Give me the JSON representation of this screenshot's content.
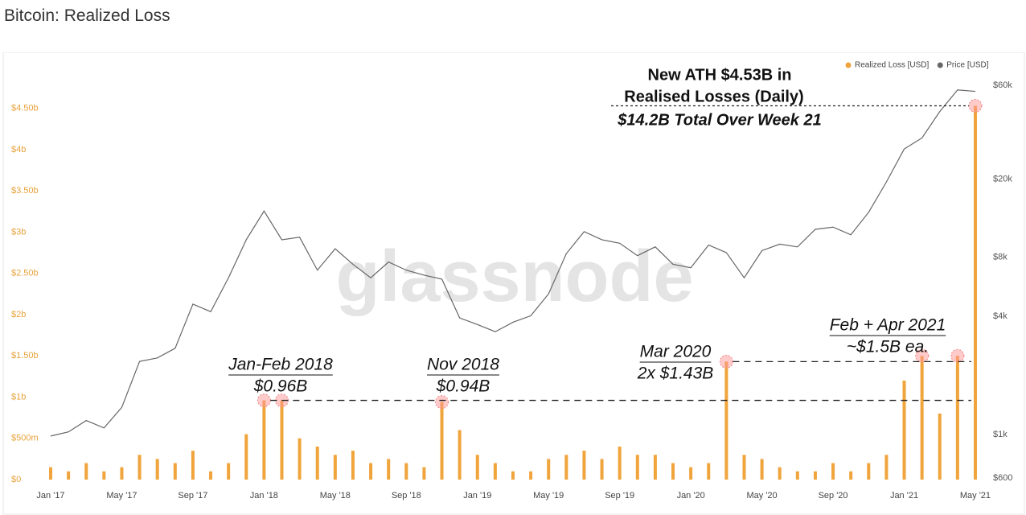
{
  "chart_data": {
    "type": "bar-line",
    "title": "Bitcoin: Realized Loss",
    "watermark": "glassnode",
    "x": [
      "2017-01",
      "2017-02",
      "2017-03",
      "2017-04",
      "2017-05",
      "2017-06",
      "2017-07",
      "2017-08",
      "2017-09",
      "2017-10",
      "2017-11",
      "2017-12",
      "2018-01",
      "2018-02",
      "2018-03",
      "2018-04",
      "2018-05",
      "2018-06",
      "2018-07",
      "2018-08",
      "2018-09",
      "2018-10",
      "2018-11",
      "2018-12",
      "2019-01",
      "2019-02",
      "2019-03",
      "2019-04",
      "2019-05",
      "2019-06",
      "2019-07",
      "2019-08",
      "2019-09",
      "2019-10",
      "2019-11",
      "2019-12",
      "2020-01",
      "2020-02",
      "2020-03",
      "2020-04",
      "2020-05",
      "2020-06",
      "2020-07",
      "2020-08",
      "2020-09",
      "2020-10",
      "2020-11",
      "2020-12",
      "2021-01",
      "2021-02",
      "2021-03",
      "2021-04",
      "2021-05"
    ],
    "series": [
      {
        "name": "Realized Loss [USD]",
        "color": "#f0a43c",
        "values": [
          0.15,
          0.1,
          0.2,
          0.1,
          0.15,
          0.3,
          0.25,
          0.2,
          0.35,
          0.1,
          0.2,
          0.55,
          0.96,
          0.96,
          0.5,
          0.4,
          0.3,
          0.35,
          0.2,
          0.25,
          0.2,
          0.15,
          0.94,
          0.6,
          0.3,
          0.2,
          0.1,
          0.1,
          0.25,
          0.3,
          0.35,
          0.25,
          0.4,
          0.3,
          0.3,
          0.2,
          0.15,
          0.2,
          1.43,
          0.3,
          0.25,
          0.15,
          0.1,
          0.1,
          0.2,
          0.1,
          0.2,
          0.3,
          1.2,
          1.5,
          0.8,
          1.5,
          4.53
        ]
      },
      {
        "name": "Price [USD]",
        "color": "#666666",
        "axis": "y2",
        "values": [
          1000,
          1050,
          1200,
          1100,
          1400,
          2400,
          2500,
          2800,
          4700,
          4300,
          6400,
          10000,
          14000,
          10000,
          10300,
          7000,
          9000,
          7500,
          6400,
          7700,
          7000,
          6600,
          6300,
          4000,
          3700,
          3400,
          3800,
          4100,
          5300,
          8500,
          11000,
          10000,
          9600,
          8300,
          9200,
          7500,
          7200,
          9400,
          8600,
          6400,
          8800,
          9500,
          9200,
          11300,
          11600,
          10600,
          13800,
          19700,
          29000,
          33000,
          45000,
          58000,
          57000
        ]
      }
    ],
    "ylim": [
      0,
      5.13
    ],
    "yticks": [
      {
        "value": 0,
        "label": "$0"
      },
      {
        "value": 0.5,
        "label": "$500m"
      },
      {
        "value": 1,
        "label": "$1b"
      },
      {
        "value": 1.5,
        "label": "$1.50b"
      },
      {
        "value": 2,
        "label": "$2b"
      },
      {
        "value": 2.5,
        "label": "$2.50b"
      },
      {
        "value": 3,
        "label": "$3b"
      },
      {
        "value": 3.5,
        "label": "$3.50b"
      },
      {
        "value": 4,
        "label": "$4b"
      },
      {
        "value": 4.5,
        "label": "$4.50b"
      }
    ],
    "y2lim": [
      600,
      86000
    ],
    "y2log": true,
    "y2ticks": [
      {
        "value": 600,
        "label": "$600"
      },
      {
        "value": 1000,
        "label": "$1k"
      },
      {
        "value": 4000,
        "label": "$4k"
      },
      {
        "value": 8000,
        "label": "$8k"
      },
      {
        "value": 20000,
        "label": "$20k"
      },
      {
        "value": 60000,
        "label": "$60k"
      }
    ],
    "xticks": [
      {
        "value": "2017-01",
        "label": "Jan '17"
      },
      {
        "value": "2017-05",
        "label": "May '17"
      },
      {
        "value": "2017-09",
        "label": "Sep '17"
      },
      {
        "value": "2018-01",
        "label": "Jan '18"
      },
      {
        "value": "2018-05",
        "label": "May '18"
      },
      {
        "value": "2018-09",
        "label": "Sep '18"
      },
      {
        "value": "2019-01",
        "label": "Jan '19"
      },
      {
        "value": "2019-05",
        "label": "May '19"
      },
      {
        "value": "2019-09",
        "label": "Sep '19"
      },
      {
        "value": "2020-01",
        "label": "Jan '20"
      },
      {
        "value": "2020-05",
        "label": "May '20"
      },
      {
        "value": "2020-09",
        "label": "Sep '20"
      },
      {
        "value": "2021-01",
        "label": "Jan '21"
      },
      {
        "value": "2021-05",
        "label": "May '21"
      }
    ],
    "legend": "top-right",
    "annotations": [
      "New ATH $4.53B in",
      "Realised Losses (Daily)",
      "$14.2B Total Over Week 21",
      "Jan-Feb 2018",
      "$0.96B",
      "Nov 2018",
      "$0.94B",
      "Mar 2020",
      "2x $1.43B",
      "Feb + Apr 2021",
      "~$1.5B ea."
    ]
  }
}
